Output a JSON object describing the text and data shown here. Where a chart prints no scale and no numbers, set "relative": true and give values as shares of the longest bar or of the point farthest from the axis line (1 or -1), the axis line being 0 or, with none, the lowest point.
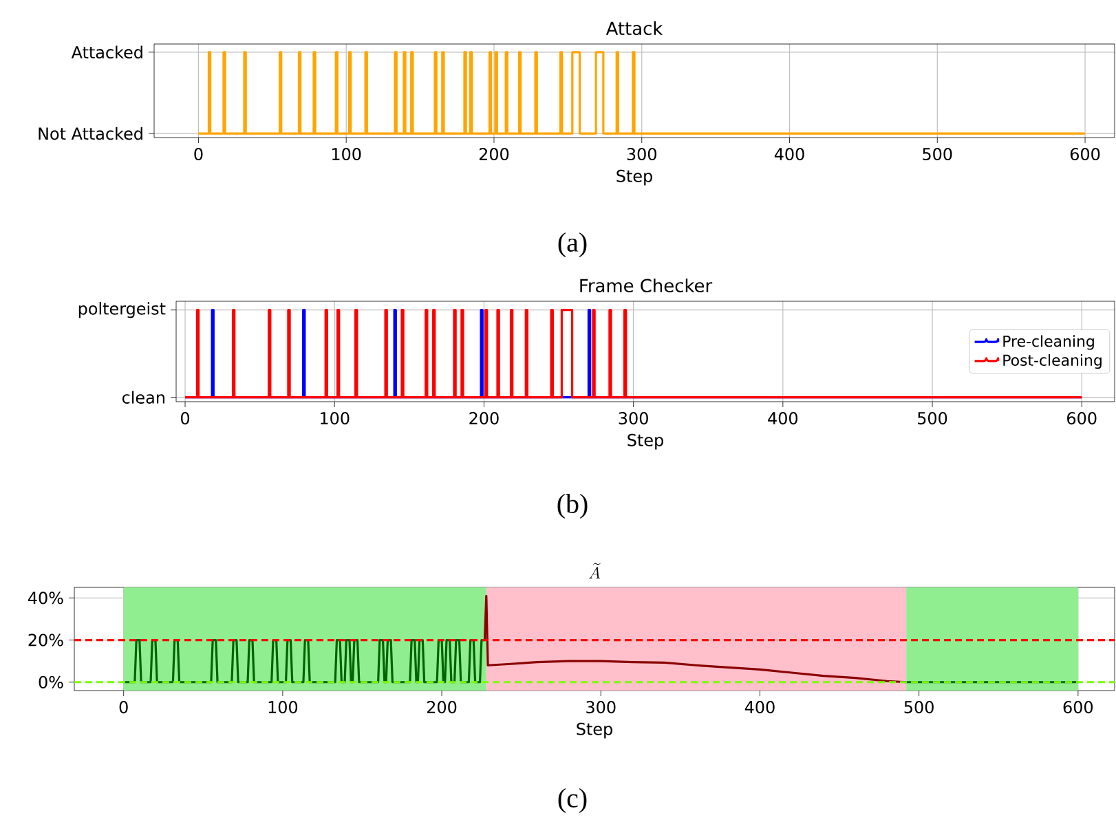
{
  "chart_data": [
    {
      "type": "step",
      "title": "Attack",
      "xlabel": "Step",
      "color": "#ffa500",
      "grid": true,
      "xlim": [
        -30,
        620
      ],
      "ylim": [
        -0.05,
        1.1
      ],
      "xticks": [
        0,
        100,
        200,
        300,
        400,
        500,
        600
      ],
      "relative": true,
      "y_categories": [
        "Attacked",
        "Not Attacked"
      ],
      "x": [
        0,
        7,
        8,
        17,
        18,
        31,
        32,
        55,
        56,
        68,
        69,
        78,
        79,
        93,
        94,
        102,
        103,
        113,
        114,
        133,
        134,
        139,
        140,
        144,
        145,
        160,
        161,
        165,
        166,
        180,
        181,
        184,
        185,
        197,
        198,
        201,
        202,
        208,
        209,
        217,
        218,
        228,
        229,
        245,
        246,
        253,
        258,
        269,
        274,
        283,
        284,
        294,
        295,
        600
      ],
      "values": [
        0,
        1,
        0,
        1,
        0,
        1,
        0,
        1,
        0,
        1,
        0,
        1,
        0,
        1,
        0,
        1,
        0,
        1,
        0,
        1,
        0,
        1,
        0,
        1,
        0,
        1,
        0,
        1,
        0,
        1,
        0,
        1,
        0,
        1,
        0,
        1,
        0,
        1,
        0,
        1,
        0,
        1,
        0,
        1,
        0,
        1,
        0,
        1,
        0,
        1,
        0,
        1,
        0,
        0
      ],
      "annotations": [
        "(a)"
      ]
    },
    {
      "type": "step",
      "title": "Frame Checker",
      "xlabel": "Step",
      "grid": true,
      "legend": "right",
      "xlim": [
        -6,
        622
      ],
      "ylim": [
        -0.05,
        1.1
      ],
      "xticks": [
        0,
        100,
        200,
        300,
        400,
        500,
        600
      ],
      "relative": true,
      "y_categories": [
        "poltergeist",
        "clean"
      ],
      "series": [
        {
          "name": "Pre-cleaning",
          "color": "#0000ff",
          "x": [
            0,
            18,
            19,
            79,
            80,
            140,
            141,
            198,
            199,
            270,
            271,
            600
          ],
          "values": [
            0,
            1,
            0,
            1,
            0,
            1,
            0,
            1,
            0,
            1,
            0,
            0
          ]
        },
        {
          "name": "Post-cleaning",
          "color": "#ff0000",
          "x": [
            0,
            8,
            9,
            32,
            33,
            56,
            57,
            69,
            70,
            94,
            95,
            102,
            103,
            114,
            115,
            134,
            135,
            145,
            146,
            161,
            162,
            166,
            167,
            180,
            181,
            185,
            186,
            201,
            202,
            209,
            210,
            218,
            219,
            228,
            229,
            245,
            246,
            252,
            259,
            273,
            274,
            284,
            285,
            294,
            295,
            600
          ],
          "values": [
            0,
            1,
            0,
            1,
            0,
            1,
            0,
            1,
            0,
            1,
            0,
            1,
            0,
            1,
            0,
            1,
            0,
            1,
            0,
            1,
            0,
            1,
            0,
            1,
            0,
            1,
            0,
            1,
            0,
            1,
            0,
            1,
            0,
            1,
            0,
            1,
            0,
            1,
            0,
            1,
            0,
            1,
            0,
            1,
            0,
            0
          ]
        }
      ],
      "annotations": [
        "(b)"
      ]
    },
    {
      "type": "line",
      "title": "\\widetilde{A}",
      "xlabel": "Step",
      "grid": true,
      "xlim": [
        -31,
        623
      ],
      "ylim": [
        -4,
        45
      ],
      "xticks": [
        0,
        100,
        200,
        300,
        400,
        500,
        600
      ],
      "yticks": [
        {
          "value": 0,
          "label": "0%"
        },
        {
          "value": 20,
          "label": "20%"
        },
        {
          "value": 40,
          "label": "40%"
        }
      ],
      "bands": [
        {
          "axis": "x",
          "from": 0,
          "to": 228,
          "color": "#90ee90"
        },
        {
          "axis": "x",
          "from": 228,
          "to": 492,
          "color": "#ffc0cb"
        },
        {
          "axis": "x",
          "from": 492,
          "to": 600,
          "color": "#90ee90"
        }
      ],
      "ref_lines": [
        {
          "axis": "y",
          "value": 20,
          "color": "#ff0000",
          "line_style": "dashed"
        },
        {
          "axis": "y",
          "value": 0,
          "color": "#7cfc00",
          "line_style": "dashed"
        }
      ],
      "series": [
        {
          "color": "#006400",
          "x": [
            0,
            7,
            8,
            10,
            11,
            17,
            18,
            20,
            21,
            31,
            32,
            34,
            35,
            55,
            56,
            58,
            59,
            68,
            69,
            71,
            72,
            78,
            79,
            81,
            82,
            93,
            94,
            96,
            97,
            102,
            103,
            105,
            106,
            113,
            114,
            116,
            117,
            133,
            134,
            136,
            137,
            139,
            140,
            142,
            143,
            144,
            145,
            147,
            148,
            160,
            161,
            163,
            164,
            165,
            166,
            168,
            169,
            180,
            181,
            183,
            184,
            185,
            186,
            188,
            189,
            197,
            198,
            200,
            201,
            202,
            203,
            205,
            206,
            208,
            209,
            211,
            212,
            217,
            218,
            220,
            221,
            224,
            225,
            227,
            228,
            492,
            600
          ],
          "values": [
            0,
            0,
            20,
            20,
            0,
            0,
            20,
            20,
            0,
            0,
            20,
            20,
            0,
            0,
            20,
            20,
            0,
            0,
            20,
            20,
            0,
            0,
            20,
            20,
            0,
            0,
            20,
            20,
            0,
            0,
            20,
            20,
            0,
            0,
            20,
            20,
            0,
            0,
            20,
            20,
            0,
            0,
            20,
            20,
            0,
            0,
            20,
            20,
            0,
            0,
            20,
            20,
            0,
            0,
            20,
            20,
            0,
            0,
            20,
            20,
            0,
            0,
            20,
            20,
            0,
            0,
            20,
            20,
            0,
            0,
            20,
            20,
            0,
            0,
            20,
            20,
            0,
            0,
            20,
            20,
            0,
            0,
            20,
            20,
            null,
            0,
            0
          ]
        },
        {
          "color": "#8b0000",
          "x": [
            227,
            228,
            229,
            240,
            260,
            280,
            300,
            320,
            340,
            360,
            380,
            400,
            420,
            440,
            460,
            480,
            492
          ],
          "values": [
            20,
            41,
            8,
            8.5,
            9.5,
            10,
            10,
            9.5,
            9.3,
            8,
            7,
            6,
            4.5,
            3,
            2,
            0.5,
            0
          ]
        }
      ],
      "annotations": [
        "(c)"
      ]
    }
  ]
}
